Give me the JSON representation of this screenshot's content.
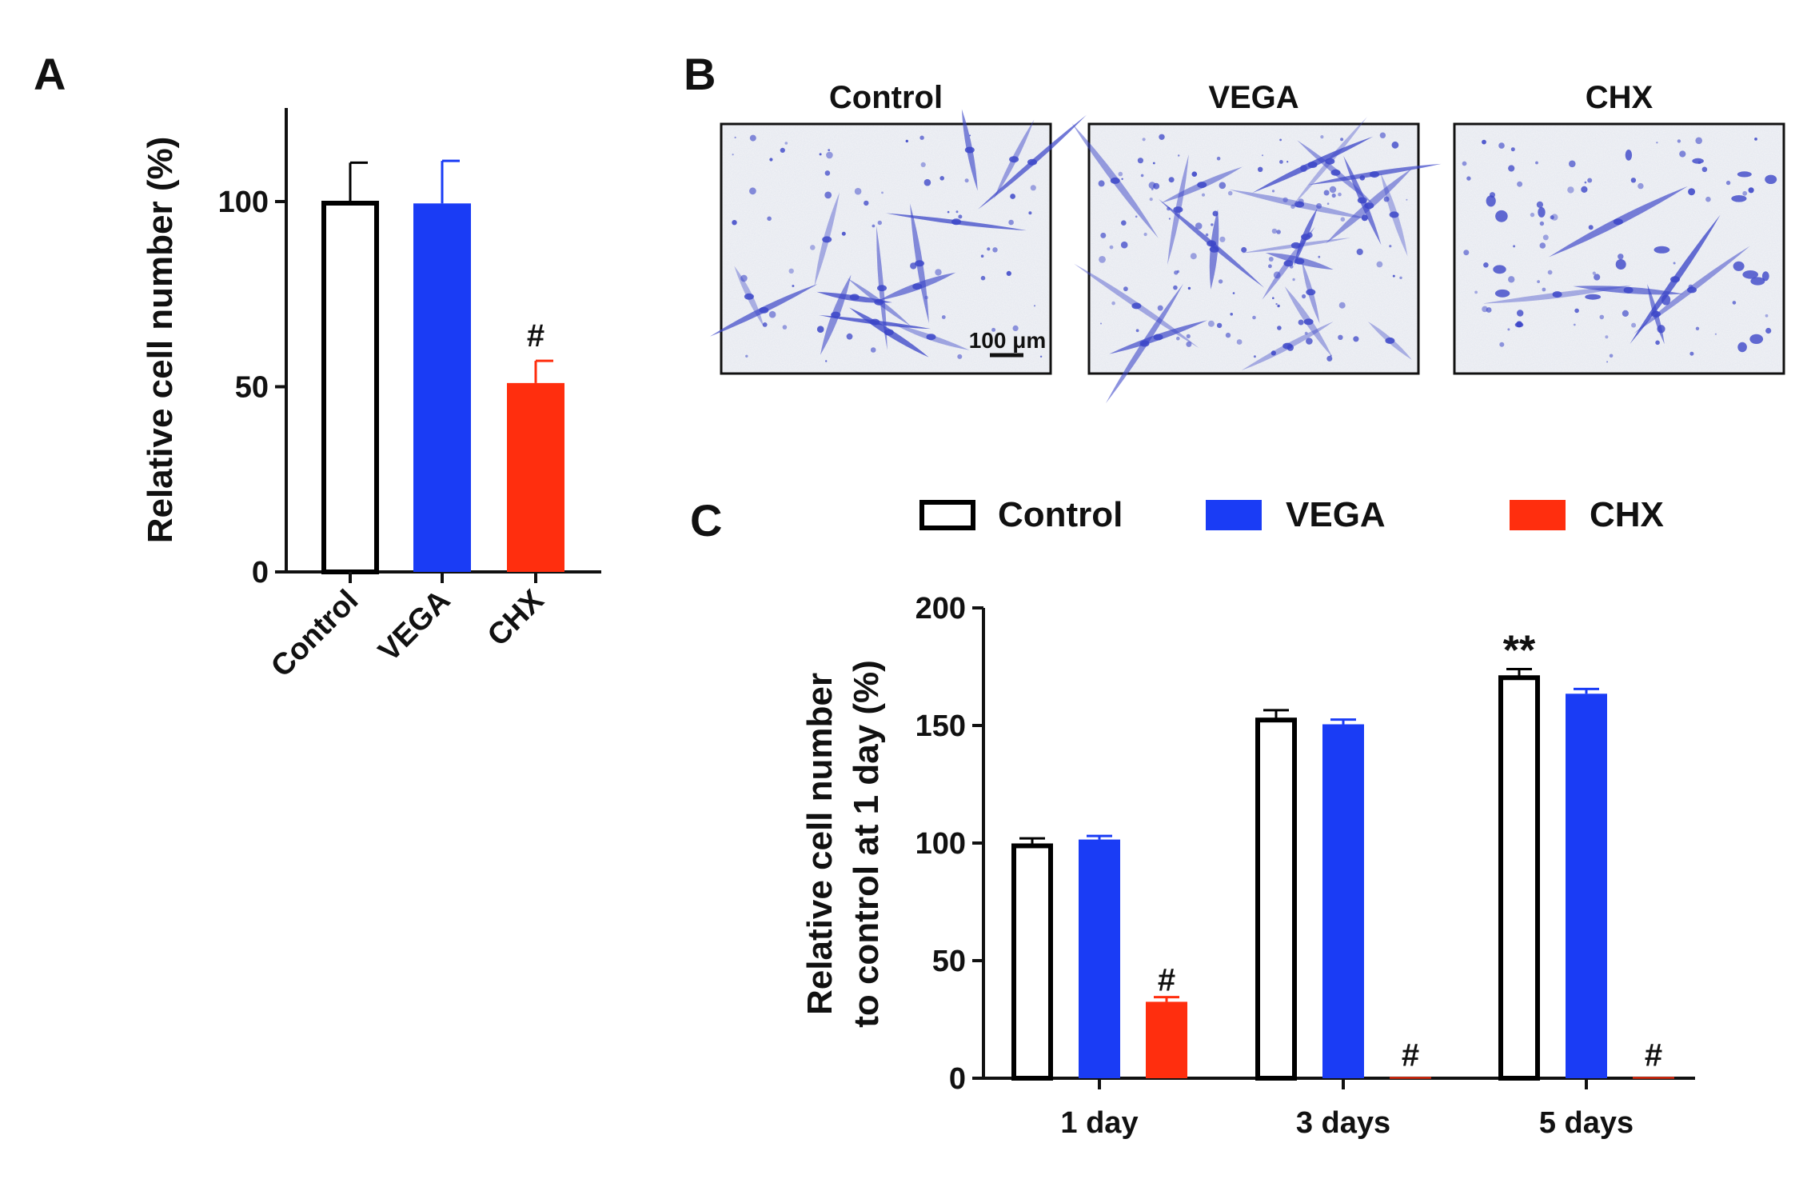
{
  "panels": {
    "a": {
      "label": "A"
    },
    "b": {
      "label": "B",
      "titles": [
        "Control",
        "VEGA",
        "CHX"
      ],
      "scale_bar": "100 μm"
    },
    "c": {
      "label": "C"
    }
  },
  "colors": {
    "control_fill": "#ffffff",
    "control_stroke": "#000000",
    "vega": "#1a3cf5",
    "chx": "#ff2e0e",
    "stain": "#3c46c8"
  },
  "chart_data": [
    {
      "id": "A",
      "type": "bar",
      "title": "",
      "xlabel": "",
      "ylabel": "Relative cell number (%)",
      "ylim": [
        0,
        125
      ],
      "yticks": [
        0,
        50,
        100
      ],
      "categories": [
        "Control",
        "VEGA",
        "CHX"
      ],
      "values": [
        100,
        99.5,
        51
      ],
      "errors": [
        10.5,
        11.5,
        6
      ],
      "annotations": [
        "",
        "",
        "#"
      ]
    },
    {
      "id": "C",
      "type": "bar",
      "title": "",
      "xlabel": "",
      "ylabel": "Relative cell number to control at 1 day (%)",
      "ylabel_lines": [
        "Relative cell number",
        "to control at 1 day (%)"
      ],
      "ylim": [
        0,
        200
      ],
      "yticks": [
        0,
        50,
        100,
        150,
        200
      ],
      "categories": [
        "1 day",
        "3 days",
        "5 days"
      ],
      "legend_position": "top",
      "series": [
        {
          "name": "Control",
          "values": [
            99.5,
            153,
            171
          ],
          "errors": [
            2.5,
            3.5,
            3
          ],
          "annotations": [
            "",
            "",
            "**"
          ]
        },
        {
          "name": "VEGA",
          "values": [
            101.5,
            150.5,
            163.5
          ],
          "errors": [
            1.5,
            2,
            2
          ],
          "annotations": [
            "",
            "",
            ""
          ]
        },
        {
          "name": "CHX",
          "values": [
            32.5,
            0.5,
            0.5
          ],
          "errors": [
            2,
            0,
            0
          ],
          "annotations": [
            "#",
            "#",
            "#"
          ]
        }
      ]
    }
  ]
}
